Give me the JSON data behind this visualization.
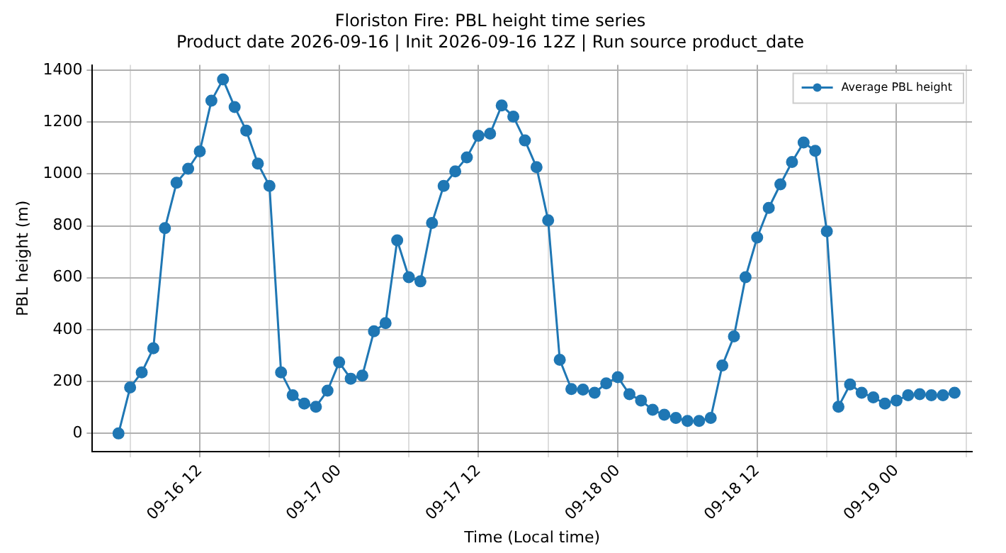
{
  "chart_data": {
    "type": "line",
    "title": "Floriston Fire: PBL height time series",
    "subtitle": "Product date 2026-09-16 | Init 2026-09-16 12Z | Run source product_date",
    "xlabel": "Time (Local time)",
    "ylabel": "PBL height (m)",
    "x": [
      "2026-09-16T05:00",
      "2026-09-16T06:00",
      "2026-09-16T07:00",
      "2026-09-16T08:00",
      "2026-09-16T09:00",
      "2026-09-16T10:00",
      "2026-09-16T11:00",
      "2026-09-16T12:00",
      "2026-09-16T13:00",
      "2026-09-16T14:00",
      "2026-09-16T15:00",
      "2026-09-16T16:00",
      "2026-09-16T17:00",
      "2026-09-16T18:00",
      "2026-09-16T19:00",
      "2026-09-16T20:00",
      "2026-09-16T21:00",
      "2026-09-16T22:00",
      "2026-09-16T23:00",
      "2026-09-17T00:00",
      "2026-09-17T01:00",
      "2026-09-17T02:00",
      "2026-09-17T03:00",
      "2026-09-17T04:00",
      "2026-09-17T05:00",
      "2026-09-17T06:00",
      "2026-09-17T07:00",
      "2026-09-17T08:00",
      "2026-09-17T09:00",
      "2026-09-17T10:00",
      "2026-09-17T11:00",
      "2026-09-17T12:00",
      "2026-09-17T13:00",
      "2026-09-17T14:00",
      "2026-09-17T15:00",
      "2026-09-17T16:00",
      "2026-09-17T17:00",
      "2026-09-17T18:00",
      "2026-09-17T19:00",
      "2026-09-17T20:00",
      "2026-09-17T21:00",
      "2026-09-17T22:00",
      "2026-09-17T23:00",
      "2026-09-18T00:00",
      "2026-09-18T01:00",
      "2026-09-18T02:00",
      "2026-09-18T03:00",
      "2026-09-18T04:00",
      "2026-09-18T05:00",
      "2026-09-18T06:00",
      "2026-09-18T07:00",
      "2026-09-18T08:00",
      "2026-09-18T09:00",
      "2026-09-18T10:00",
      "2026-09-18T11:00",
      "2026-09-18T12:00",
      "2026-09-18T13:00",
      "2026-09-18T14:00",
      "2026-09-18T15:00",
      "2026-09-18T16:00",
      "2026-09-18T17:00",
      "2026-09-18T18:00",
      "2026-09-18T19:00",
      "2026-09-18T20:00",
      "2026-09-18T21:00",
      "2026-09-18T22:00",
      "2026-09-18T23:00",
      "2026-09-19T00:00",
      "2026-09-19T01:00",
      "2026-09-19T02:00",
      "2026-09-19T03:00",
      "2026-09-19T04:00",
      "2026-09-19T05:00"
    ],
    "series": [
      {
        "name": "Average PBL height",
        "color": "#1f77b4",
        "values": [
          0,
          177,
          235,
          328,
          791,
          966,
          1020,
          1087,
          1282,
          1364,
          1258,
          1167,
          1040,
          954,
          235,
          147,
          115,
          103,
          165,
          274,
          211,
          223,
          394,
          425,
          744,
          602,
          586,
          811,
          954,
          1010,
          1064,
          1147,
          1155,
          1264,
          1221,
          1129,
          1026,
          821,
          284,
          171,
          169,
          157,
          193,
          217,
          151,
          127,
          91,
          72,
          60,
          48,
          48,
          60,
          262,
          374,
          602,
          755,
          869,
          960,
          1046,
          1121,
          1089,
          779,
          103,
          189,
          157,
          139,
          115,
          127,
          147,
          151,
          147,
          147,
          157
        ]
      }
    ],
    "xlim": [
      "2026-09-16T02:45",
      "2026-09-19T06:30"
    ],
    "xticks": [
      {
        "value": "2026-09-16T06:00",
        "label": null
      },
      {
        "value": "2026-09-16T12:00",
        "label": "09-16 12"
      },
      {
        "value": "2026-09-16T18:00",
        "label": null
      },
      {
        "value": "2026-09-17T00:00",
        "label": "09-17 00"
      },
      {
        "value": "2026-09-17T06:00",
        "label": null
      },
      {
        "value": "2026-09-17T12:00",
        "label": "09-17 12"
      },
      {
        "value": "2026-09-17T18:00",
        "label": null
      },
      {
        "value": "2026-09-18T00:00",
        "label": "09-18 00"
      },
      {
        "value": "2026-09-18T06:00",
        "label": null
      },
      {
        "value": "2026-09-18T12:00",
        "label": "09-18 12"
      },
      {
        "value": "2026-09-18T18:00",
        "label": null
      },
      {
        "value": "2026-09-19T00:00",
        "label": "09-19 00"
      },
      {
        "value": "2026-09-19T06:00",
        "label": null
      }
    ],
    "ylim": [
      -70,
      1420
    ],
    "yticks": [
      0,
      200,
      400,
      600,
      800,
      1000,
      1200,
      1400
    ],
    "grid": true,
    "legend": "top right",
    "marker": "circle",
    "line_style": "solid"
  }
}
